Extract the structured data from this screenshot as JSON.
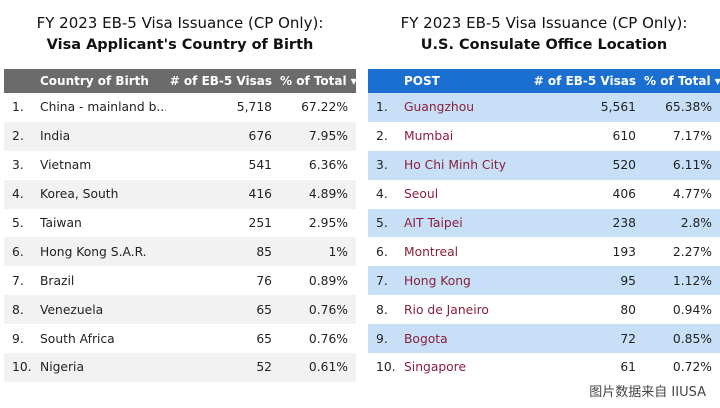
{
  "left": {
    "title_line1": "FY 2023 EB-5 Visa Issuance (CP Only):",
    "title_line2": "Visa Applicant's Country of Birth",
    "col_name": "Country of Birth",
    "col_visas": "# of EB-5 Visas",
    "col_pct": "% of Total",
    "rows": [
      {
        "rank": "1.",
        "name": "China - mainland b...",
        "visas": "5,718",
        "pct": "67.22%"
      },
      {
        "rank": "2.",
        "name": "India",
        "visas": "676",
        "pct": "7.95%"
      },
      {
        "rank": "3.",
        "name": "Vietnam",
        "visas": "541",
        "pct": "6.36%"
      },
      {
        "rank": "4.",
        "name": "Korea, South",
        "visas": "416",
        "pct": "4.89%"
      },
      {
        "rank": "5.",
        "name": "Taiwan",
        "visas": "251",
        "pct": "2.95%"
      },
      {
        "rank": "6.",
        "name": "Hong Kong S.A.R.",
        "visas": "85",
        "pct": "1%"
      },
      {
        "rank": "7.",
        "name": "Brazil",
        "visas": "76",
        "pct": "0.89%"
      },
      {
        "rank": "8.",
        "name": "Venezuela",
        "visas": "65",
        "pct": "0.76%"
      },
      {
        "rank": "9.",
        "name": "South Africa",
        "visas": "65",
        "pct": "0.76%"
      },
      {
        "rank": "10.",
        "name": "Nigeria",
        "visas": "52",
        "pct": "0.61%"
      }
    ]
  },
  "right": {
    "title_line1": "FY 2023 EB-5 Visa Issuance (CP Only):",
    "title_line2": "U.S. Consulate Office Location",
    "col_name": "POST",
    "col_visas": "# of EB-5 Visas",
    "col_pct": "% of Total",
    "rows": [
      {
        "rank": "1.",
        "name": "Guangzhou",
        "visas": "5,561",
        "pct": "65.38%"
      },
      {
        "rank": "2.",
        "name": "Mumbai",
        "visas": "610",
        "pct": "7.17%"
      },
      {
        "rank": "3.",
        "name": "Ho Chi Minh City",
        "visas": "520",
        "pct": "6.11%"
      },
      {
        "rank": "4.",
        "name": "Seoul",
        "visas": "406",
        "pct": "4.77%"
      },
      {
        "rank": "5.",
        "name": "AIT Taipei",
        "visas": "238",
        "pct": "2.8%"
      },
      {
        "rank": "6.",
        "name": "Montreal",
        "visas": "193",
        "pct": "2.27%"
      },
      {
        "rank": "7.",
        "name": "Hong Kong",
        "visas": "95",
        "pct": "1.12%"
      },
      {
        "rank": "8.",
        "name": "Rio de Janeiro",
        "visas": "80",
        "pct": "0.94%"
      },
      {
        "rank": "9.",
        "name": "Bogota",
        "visas": "72",
        "pct": "0.85%"
      },
      {
        "rank": "10.",
        "name": "Singapore",
        "visas": "61",
        "pct": "0.72%"
      }
    ]
  },
  "sort_icon": "caret-down-icon",
  "colors": {
    "left_header": "#6b6b6b",
    "right_header": "#1b6fd1",
    "right_stripe": "#c7e0f8",
    "right_name_text": "#8a1f3b"
  },
  "watermark": "图片数据来自 IIUSA"
}
